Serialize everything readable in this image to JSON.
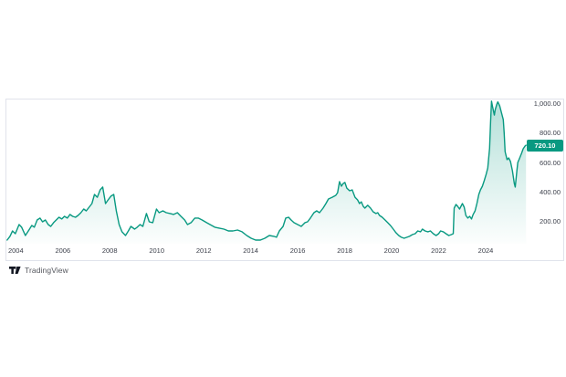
{
  "widget": {
    "price_label": "720.10",
    "attribution": "TradingView",
    "colors": {
      "line": "#089981",
      "fill_top": "rgba(8,153,129,0.30)",
      "fill_bottom": "rgba(8,153,129,0.01)",
      "badge_bg": "#089981",
      "badge_text": "#ffffff",
      "axis_text": "#3c404b",
      "panel_border": "#e0e3eb",
      "background": "#ffffff"
    }
  },
  "chart_data": {
    "type": "area",
    "title": "",
    "xlabel": "",
    "ylabel": "",
    "grid": false,
    "legend_position": "none",
    "xlim": [
      2003.6,
      2025.75
    ],
    "ylim": [
      51,
      1031
    ],
    "last_price": 720.1,
    "x_ticks": [
      2004,
      2006,
      2008,
      2010,
      2012,
      2014,
      2016,
      2018,
      2020,
      2022,
      2024
    ],
    "y_ticks": [
      {
        "label": "1,000.00",
        "value": 1000
      },
      {
        "label": "800.00",
        "value": 800
      },
      {
        "label": "600.00",
        "value": 600
      },
      {
        "label": "400.00",
        "value": 400
      },
      {
        "label": "200.00",
        "value": 200
      }
    ],
    "series": [
      {
        "name": "price",
        "points": [
          [
            2003.63,
            76
          ],
          [
            2003.75,
            101
          ],
          [
            2003.86,
            138
          ],
          [
            2003.98,
            119
          ],
          [
            2004.14,
            181
          ],
          [
            2004.25,
            163
          ],
          [
            2004.41,
            107
          ],
          [
            2004.56,
            144
          ],
          [
            2004.68,
            175
          ],
          [
            2004.79,
            163
          ],
          [
            2004.91,
            212
          ],
          [
            2005.03,
            225
          ],
          [
            2005.14,
            200
          ],
          [
            2005.26,
            212
          ],
          [
            2005.38,
            181
          ],
          [
            2005.49,
            169
          ],
          [
            2005.61,
            194
          ],
          [
            2005.72,
            212
          ],
          [
            2005.84,
            231
          ],
          [
            2005.96,
            219
          ],
          [
            2006.07,
            237
          ],
          [
            2006.19,
            225
          ],
          [
            2006.31,
            250
          ],
          [
            2006.42,
            237
          ],
          [
            2006.54,
            231
          ],
          [
            2006.65,
            243
          ],
          [
            2006.77,
            262
          ],
          [
            2006.89,
            287
          ],
          [
            2007.0,
            274
          ],
          [
            2007.12,
            299
          ],
          [
            2007.24,
            324
          ],
          [
            2007.35,
            386
          ],
          [
            2007.47,
            367
          ],
          [
            2007.59,
            417
          ],
          [
            2007.7,
            436
          ],
          [
            2007.82,
            324
          ],
          [
            2007.93,
            349
          ],
          [
            2008.05,
            374
          ],
          [
            2008.17,
            386
          ],
          [
            2008.28,
            274
          ],
          [
            2008.4,
            181
          ],
          [
            2008.52,
            132
          ],
          [
            2008.67,
            107
          ],
          [
            2008.79,
            138
          ],
          [
            2008.9,
            169
          ],
          [
            2009.06,
            150
          ],
          [
            2009.17,
            163
          ],
          [
            2009.29,
            181
          ],
          [
            2009.41,
            169
          ],
          [
            2009.56,
            256
          ],
          [
            2009.68,
            200
          ],
          [
            2009.83,
            194
          ],
          [
            2009.99,
            287
          ],
          [
            2010.1,
            262
          ],
          [
            2010.26,
            274
          ],
          [
            2010.41,
            262
          ],
          [
            2010.57,
            256
          ],
          [
            2010.72,
            250
          ],
          [
            2010.88,
            262
          ],
          [
            2011.03,
            237
          ],
          [
            2011.19,
            212
          ],
          [
            2011.31,
            181
          ],
          [
            2011.46,
            194
          ],
          [
            2011.62,
            225
          ],
          [
            2011.77,
            225
          ],
          [
            2011.93,
            212
          ],
          [
            2012.12,
            194
          ],
          [
            2012.27,
            181
          ],
          [
            2012.47,
            163
          ],
          [
            2012.66,
            157
          ],
          [
            2012.86,
            150
          ],
          [
            2013.05,
            138
          ],
          [
            2013.24,
            138
          ],
          [
            2013.44,
            144
          ],
          [
            2013.63,
            132
          ],
          [
            2013.83,
            107
          ],
          [
            2014.02,
            88
          ],
          [
            2014.21,
            76
          ],
          [
            2014.41,
            76
          ],
          [
            2014.6,
            88
          ],
          [
            2014.79,
            107
          ],
          [
            2014.99,
            101
          ],
          [
            2015.1,
            95
          ],
          [
            2015.22,
            138
          ],
          [
            2015.38,
            169
          ],
          [
            2015.49,
            225
          ],
          [
            2015.61,
            231
          ],
          [
            2015.72,
            212
          ],
          [
            2015.84,
            194
          ],
          [
            2016.0,
            181
          ],
          [
            2016.15,
            169
          ],
          [
            2016.31,
            194
          ],
          [
            2016.42,
            200
          ],
          [
            2016.54,
            225
          ],
          [
            2016.69,
            262
          ],
          [
            2016.81,
            274
          ],
          [
            2016.93,
            262
          ],
          [
            2017.08,
            293
          ],
          [
            2017.2,
            324
          ],
          [
            2017.31,
            355
          ],
          [
            2017.47,
            367
          ],
          [
            2017.62,
            380
          ],
          [
            2017.7,
            398
          ],
          [
            2017.78,
            473
          ],
          [
            2017.86,
            442
          ],
          [
            2017.93,
            460
          ],
          [
            2018.01,
            467
          ],
          [
            2018.09,
            429
          ],
          [
            2018.21,
            411
          ],
          [
            2018.32,
            417
          ],
          [
            2018.44,
            367
          ],
          [
            2018.55,
            349
          ],
          [
            2018.63,
            324
          ],
          [
            2018.71,
            336
          ],
          [
            2018.79,
            305
          ],
          [
            2018.86,
            293
          ],
          [
            2018.98,
            312
          ],
          [
            2019.1,
            293
          ],
          [
            2019.21,
            268
          ],
          [
            2019.33,
            256
          ],
          [
            2019.41,
            262
          ],
          [
            2019.48,
            243
          ],
          [
            2019.6,
            231
          ],
          [
            2019.72,
            212
          ],
          [
            2019.83,
            194
          ],
          [
            2019.95,
            175
          ],
          [
            2020.07,
            150
          ],
          [
            2020.18,
            126
          ],
          [
            2020.3,
            107
          ],
          [
            2020.41,
            95
          ],
          [
            2020.53,
            88
          ],
          [
            2020.65,
            95
          ],
          [
            2020.76,
            101
          ],
          [
            2020.88,
            113
          ],
          [
            2021.0,
            119
          ],
          [
            2021.11,
            138
          ],
          [
            2021.23,
            132
          ],
          [
            2021.31,
            150
          ],
          [
            2021.42,
            138
          ],
          [
            2021.54,
            132
          ],
          [
            2021.65,
            138
          ],
          [
            2021.77,
            119
          ],
          [
            2021.89,
            107
          ],
          [
            2022.0,
            119
          ],
          [
            2022.08,
            138
          ],
          [
            2022.2,
            132
          ],
          [
            2022.31,
            119
          ],
          [
            2022.43,
            107
          ],
          [
            2022.54,
            113
          ],
          [
            2022.62,
            119
          ],
          [
            2022.66,
            293
          ],
          [
            2022.74,
            318
          ],
          [
            2022.81,
            305
          ],
          [
            2022.89,
            287
          ],
          [
            2023.01,
            324
          ],
          [
            2023.09,
            299
          ],
          [
            2023.16,
            243
          ],
          [
            2023.24,
            225
          ],
          [
            2023.32,
            237
          ],
          [
            2023.4,
            219
          ],
          [
            2023.47,
            250
          ],
          [
            2023.55,
            274
          ],
          [
            2023.63,
            324
          ],
          [
            2023.71,
            386
          ],
          [
            2023.78,
            417
          ],
          [
            2023.86,
            442
          ],
          [
            2023.94,
            479
          ],
          [
            2024.02,
            522
          ],
          [
            2024.09,
            566
          ],
          [
            2024.17,
            700
          ],
          [
            2024.21,
            880
          ],
          [
            2024.25,
            1020
          ],
          [
            2024.29,
            987
          ],
          [
            2024.37,
            925
          ],
          [
            2024.41,
            963
          ],
          [
            2024.48,
            1000
          ],
          [
            2024.52,
            1015
          ],
          [
            2024.6,
            987
          ],
          [
            2024.67,
            944
          ],
          [
            2024.75,
            894
          ],
          [
            2024.79,
            801
          ],
          [
            2024.83,
            677
          ],
          [
            2024.91,
            622
          ],
          [
            2024.98,
            634
          ],
          [
            2025.06,
            609
          ],
          [
            2025.14,
            547
          ],
          [
            2025.22,
            460
          ],
          [
            2025.26,
            436
          ],
          [
            2025.29,
            485
          ],
          [
            2025.33,
            547
          ],
          [
            2025.37,
            603
          ],
          [
            2025.45,
            634
          ],
          [
            2025.53,
            665
          ],
          [
            2025.6,
            696
          ],
          [
            2025.68,
            715
          ],
          [
            2025.72,
            720.1
          ]
        ]
      }
    ]
  }
}
